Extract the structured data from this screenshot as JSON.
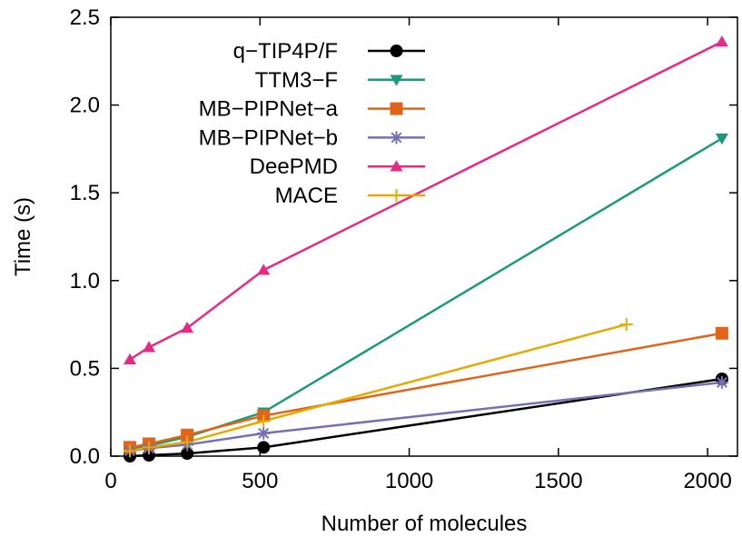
{
  "chart_data": {
    "type": "line",
    "xlabel": "Number of molecules",
    "ylabel": "Time (s)",
    "xlim": [
      0,
      2100
    ],
    "ylim": [
      0,
      2.5
    ],
    "xticks": [
      0,
      500,
      1000,
      1500,
      2000
    ],
    "yticks": [
      0.0,
      0.5,
      1.0,
      1.5,
      2.0,
      2.5
    ],
    "xtick_labels": [
      "0",
      "500",
      "1000",
      "1500",
      "2000"
    ],
    "ytick_labels": [
      "0.0",
      "0.5",
      "1.0",
      "1.5",
      "2.0",
      "2.5"
    ],
    "grid": false,
    "legend_position": "top-left",
    "series": [
      {
        "name": "q−TIP4P/F",
        "color": "#000000",
        "marker": "circle",
        "x": [
          64,
          128,
          256,
          512,
          2048
        ],
        "y": [
          0.0,
          0.005,
          0.015,
          0.05,
          0.44
        ]
      },
      {
        "name": "TTM3−F",
        "color": "#1a9a7a",
        "marker": "triangle-down",
        "x": [
          64,
          128,
          256,
          512,
          2048
        ],
        "y": [
          0.04,
          0.06,
          0.11,
          0.25,
          1.81
        ]
      },
      {
        "name": "MB−PIPNet−a",
        "color": "#e0651a",
        "marker": "square",
        "x": [
          64,
          128,
          256,
          512,
          2048
        ],
        "y": [
          0.05,
          0.07,
          0.12,
          0.23,
          0.7
        ]
      },
      {
        "name": "MB−PIPNet−b",
        "color": "#7570b3",
        "marker": "asterisk",
        "x": [
          64,
          128,
          256,
          512,
          2048
        ],
        "y": [
          0.03,
          0.045,
          0.065,
          0.13,
          0.42
        ]
      },
      {
        "name": "DeePMD",
        "color": "#e7298a",
        "marker": "triangle-up",
        "x": [
          64,
          128,
          256,
          512,
          2048
        ],
        "y": [
          0.55,
          0.62,
          0.73,
          1.06,
          2.36
        ]
      },
      {
        "name": "MACE",
        "color": "#e6ab02",
        "marker": "plus",
        "x": [
          64,
          128,
          256,
          512,
          1728
        ],
        "y": [
          0.03,
          0.05,
          0.08,
          0.2,
          0.75
        ]
      }
    ]
  }
}
